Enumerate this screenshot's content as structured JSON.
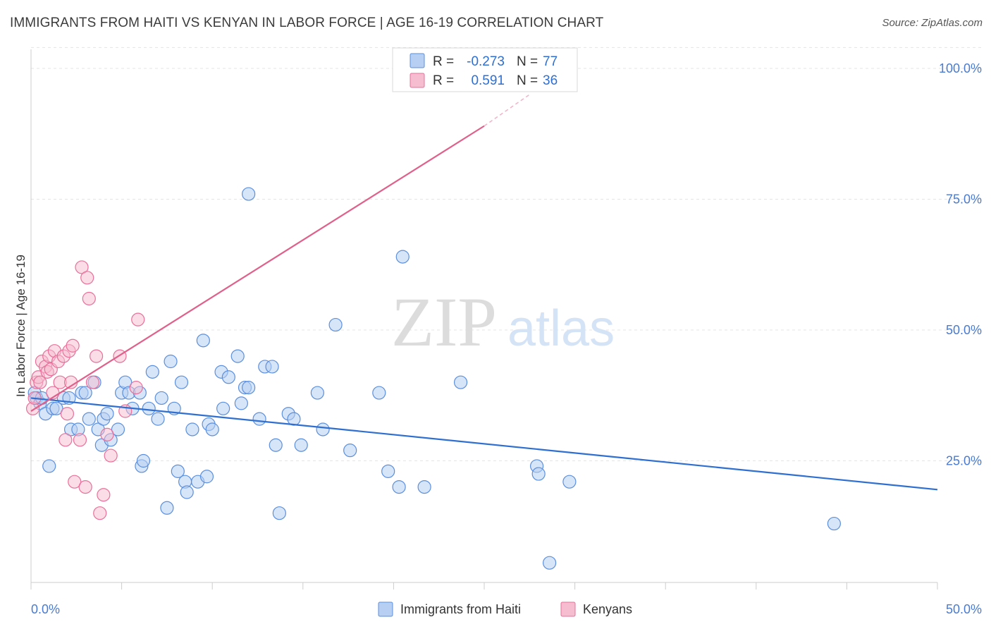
{
  "title": "IMMIGRANTS FROM HAITI VS KENYAN IN LABOR FORCE | AGE 16-19 CORRELATION CHART",
  "source": "Source: ZipAtlas.com",
  "watermark": {
    "zip": "ZIP",
    "atlas": "atlas"
  },
  "colors": {
    "haiti": "#5b8fdd",
    "haiti_fill": "#b6cff3",
    "kenya": "#e8709a",
    "kenya_fill": "#f6bcd0",
    "tick_label": "#4a7bd0"
  },
  "chart_data": {
    "type": "scatter",
    "xlabel": "",
    "ylabel": "In Labor Force | Age 16-19",
    "xlim": [
      0,
      50
    ],
    "ylim": [
      0,
      105
    ],
    "x_tick_labels": [
      "0.0%",
      "50.0%"
    ],
    "y_ticks": [
      25,
      50,
      75,
      100
    ],
    "y_tick_labels": [
      "25.0%",
      "50.0%",
      "75.0%",
      "100.0%"
    ],
    "grid": true,
    "legend": {
      "position": "top-center",
      "rows": [
        {
          "r_label": "R =",
          "r_value": "-0.273",
          "n_label": "N =",
          "n_value": "77"
        },
        {
          "r_label": "R =",
          "r_value": "0.591",
          "n_label": "N =",
          "n_value": "36"
        }
      ]
    },
    "bottom_legend": [
      "Immigrants from Haiti",
      "Kenyans"
    ],
    "series": [
      {
        "name": "Immigrants from Haiti",
        "color": "#5b8fdd",
        "trend": {
          "x": [
            0,
            50
          ],
          "y": [
            37,
            19.5
          ]
        },
        "points": [
          [
            0.2,
            38
          ],
          [
            0.3,
            37
          ],
          [
            0.5,
            36
          ],
          [
            0.6,
            37
          ],
          [
            0.8,
            34
          ],
          [
            1.0,
            24
          ],
          [
            1.2,
            35
          ],
          [
            1.4,
            35
          ],
          [
            1.8,
            37
          ],
          [
            2.1,
            37
          ],
          [
            2.2,
            31
          ],
          [
            2.6,
            31
          ],
          [
            2.8,
            38
          ],
          [
            3.0,
            38
          ],
          [
            3.2,
            33
          ],
          [
            3.5,
            40
          ],
          [
            3.7,
            31
          ],
          [
            3.9,
            28
          ],
          [
            4.0,
            33
          ],
          [
            4.2,
            34
          ],
          [
            4.4,
            29
          ],
          [
            4.8,
            31
          ],
          [
            5.0,
            38
          ],
          [
            5.2,
            40
          ],
          [
            5.4,
            38
          ],
          [
            5.6,
            35
          ],
          [
            6.0,
            38
          ],
          [
            6.1,
            24
          ],
          [
            6.2,
            25
          ],
          [
            6.5,
            35
          ],
          [
            6.7,
            42
          ],
          [
            7.0,
            33
          ],
          [
            7.2,
            37
          ],
          [
            7.5,
            16
          ],
          [
            7.7,
            44
          ],
          [
            7.9,
            35
          ],
          [
            8.1,
            23
          ],
          [
            8.3,
            40
          ],
          [
            8.5,
            21
          ],
          [
            8.6,
            19
          ],
          [
            8.9,
            31
          ],
          [
            9.2,
            21
          ],
          [
            9.5,
            48
          ],
          [
            9.7,
            22
          ],
          [
            9.8,
            32
          ],
          [
            10.0,
            31
          ],
          [
            10.5,
            42
          ],
          [
            10.6,
            35
          ],
          [
            10.9,
            41
          ],
          [
            11.4,
            45
          ],
          [
            11.6,
            36
          ],
          [
            11.8,
            39
          ],
          [
            12.0,
            39
          ],
          [
            12.0,
            76
          ],
          [
            12.6,
            33
          ],
          [
            12.9,
            43
          ],
          [
            13.3,
            43
          ],
          [
            13.5,
            28
          ],
          [
            13.7,
            15
          ],
          [
            14.2,
            34
          ],
          [
            14.5,
            33
          ],
          [
            14.9,
            28
          ],
          [
            15.8,
            38
          ],
          [
            16.1,
            31
          ],
          [
            16.8,
            51
          ],
          [
            17.6,
            27
          ],
          [
            19.2,
            38
          ],
          [
            19.7,
            23
          ],
          [
            20.3,
            20
          ],
          [
            20.5,
            64
          ],
          [
            21.7,
            20
          ],
          [
            23.7,
            40
          ],
          [
            27.9,
            24
          ],
          [
            28.0,
            22.5
          ],
          [
            28.6,
            5.5
          ],
          [
            29.7,
            21
          ],
          [
            44.3,
            13
          ]
        ]
      },
      {
        "name": "Kenyans",
        "color": "#e8709a",
        "trend": {
          "x": [
            0,
            25
          ],
          "y": [
            34.5,
            89
          ],
          "dash_x": [
            25,
            27.5
          ],
          "dash_y": [
            89,
            95
          ]
        },
        "points": [
          [
            0.1,
            35
          ],
          [
            0.2,
            37
          ],
          [
            0.3,
            40
          ],
          [
            0.4,
            41
          ],
          [
            0.5,
            40
          ],
          [
            0.6,
            44
          ],
          [
            0.8,
            43
          ],
          [
            0.9,
            42
          ],
          [
            1.0,
            45
          ],
          [
            1.1,
            42.5
          ],
          [
            1.2,
            38
          ],
          [
            1.3,
            46
          ],
          [
            1.5,
            44
          ],
          [
            1.6,
            40
          ],
          [
            1.8,
            45
          ],
          [
            1.9,
            29
          ],
          [
            2.0,
            34
          ],
          [
            2.1,
            46
          ],
          [
            2.2,
            40
          ],
          [
            2.3,
            47
          ],
          [
            2.4,
            21
          ],
          [
            2.7,
            29
          ],
          [
            2.8,
            62
          ],
          [
            3.0,
            20
          ],
          [
            3.1,
            60
          ],
          [
            3.2,
            56
          ],
          [
            3.4,
            40
          ],
          [
            3.6,
            45
          ],
          [
            3.8,
            15
          ],
          [
            4.0,
            18.5
          ],
          [
            4.2,
            30
          ],
          [
            4.4,
            26
          ],
          [
            4.9,
            45
          ],
          [
            5.2,
            34.5
          ],
          [
            5.8,
            39
          ],
          [
            5.9,
            52
          ]
        ]
      }
    ]
  }
}
